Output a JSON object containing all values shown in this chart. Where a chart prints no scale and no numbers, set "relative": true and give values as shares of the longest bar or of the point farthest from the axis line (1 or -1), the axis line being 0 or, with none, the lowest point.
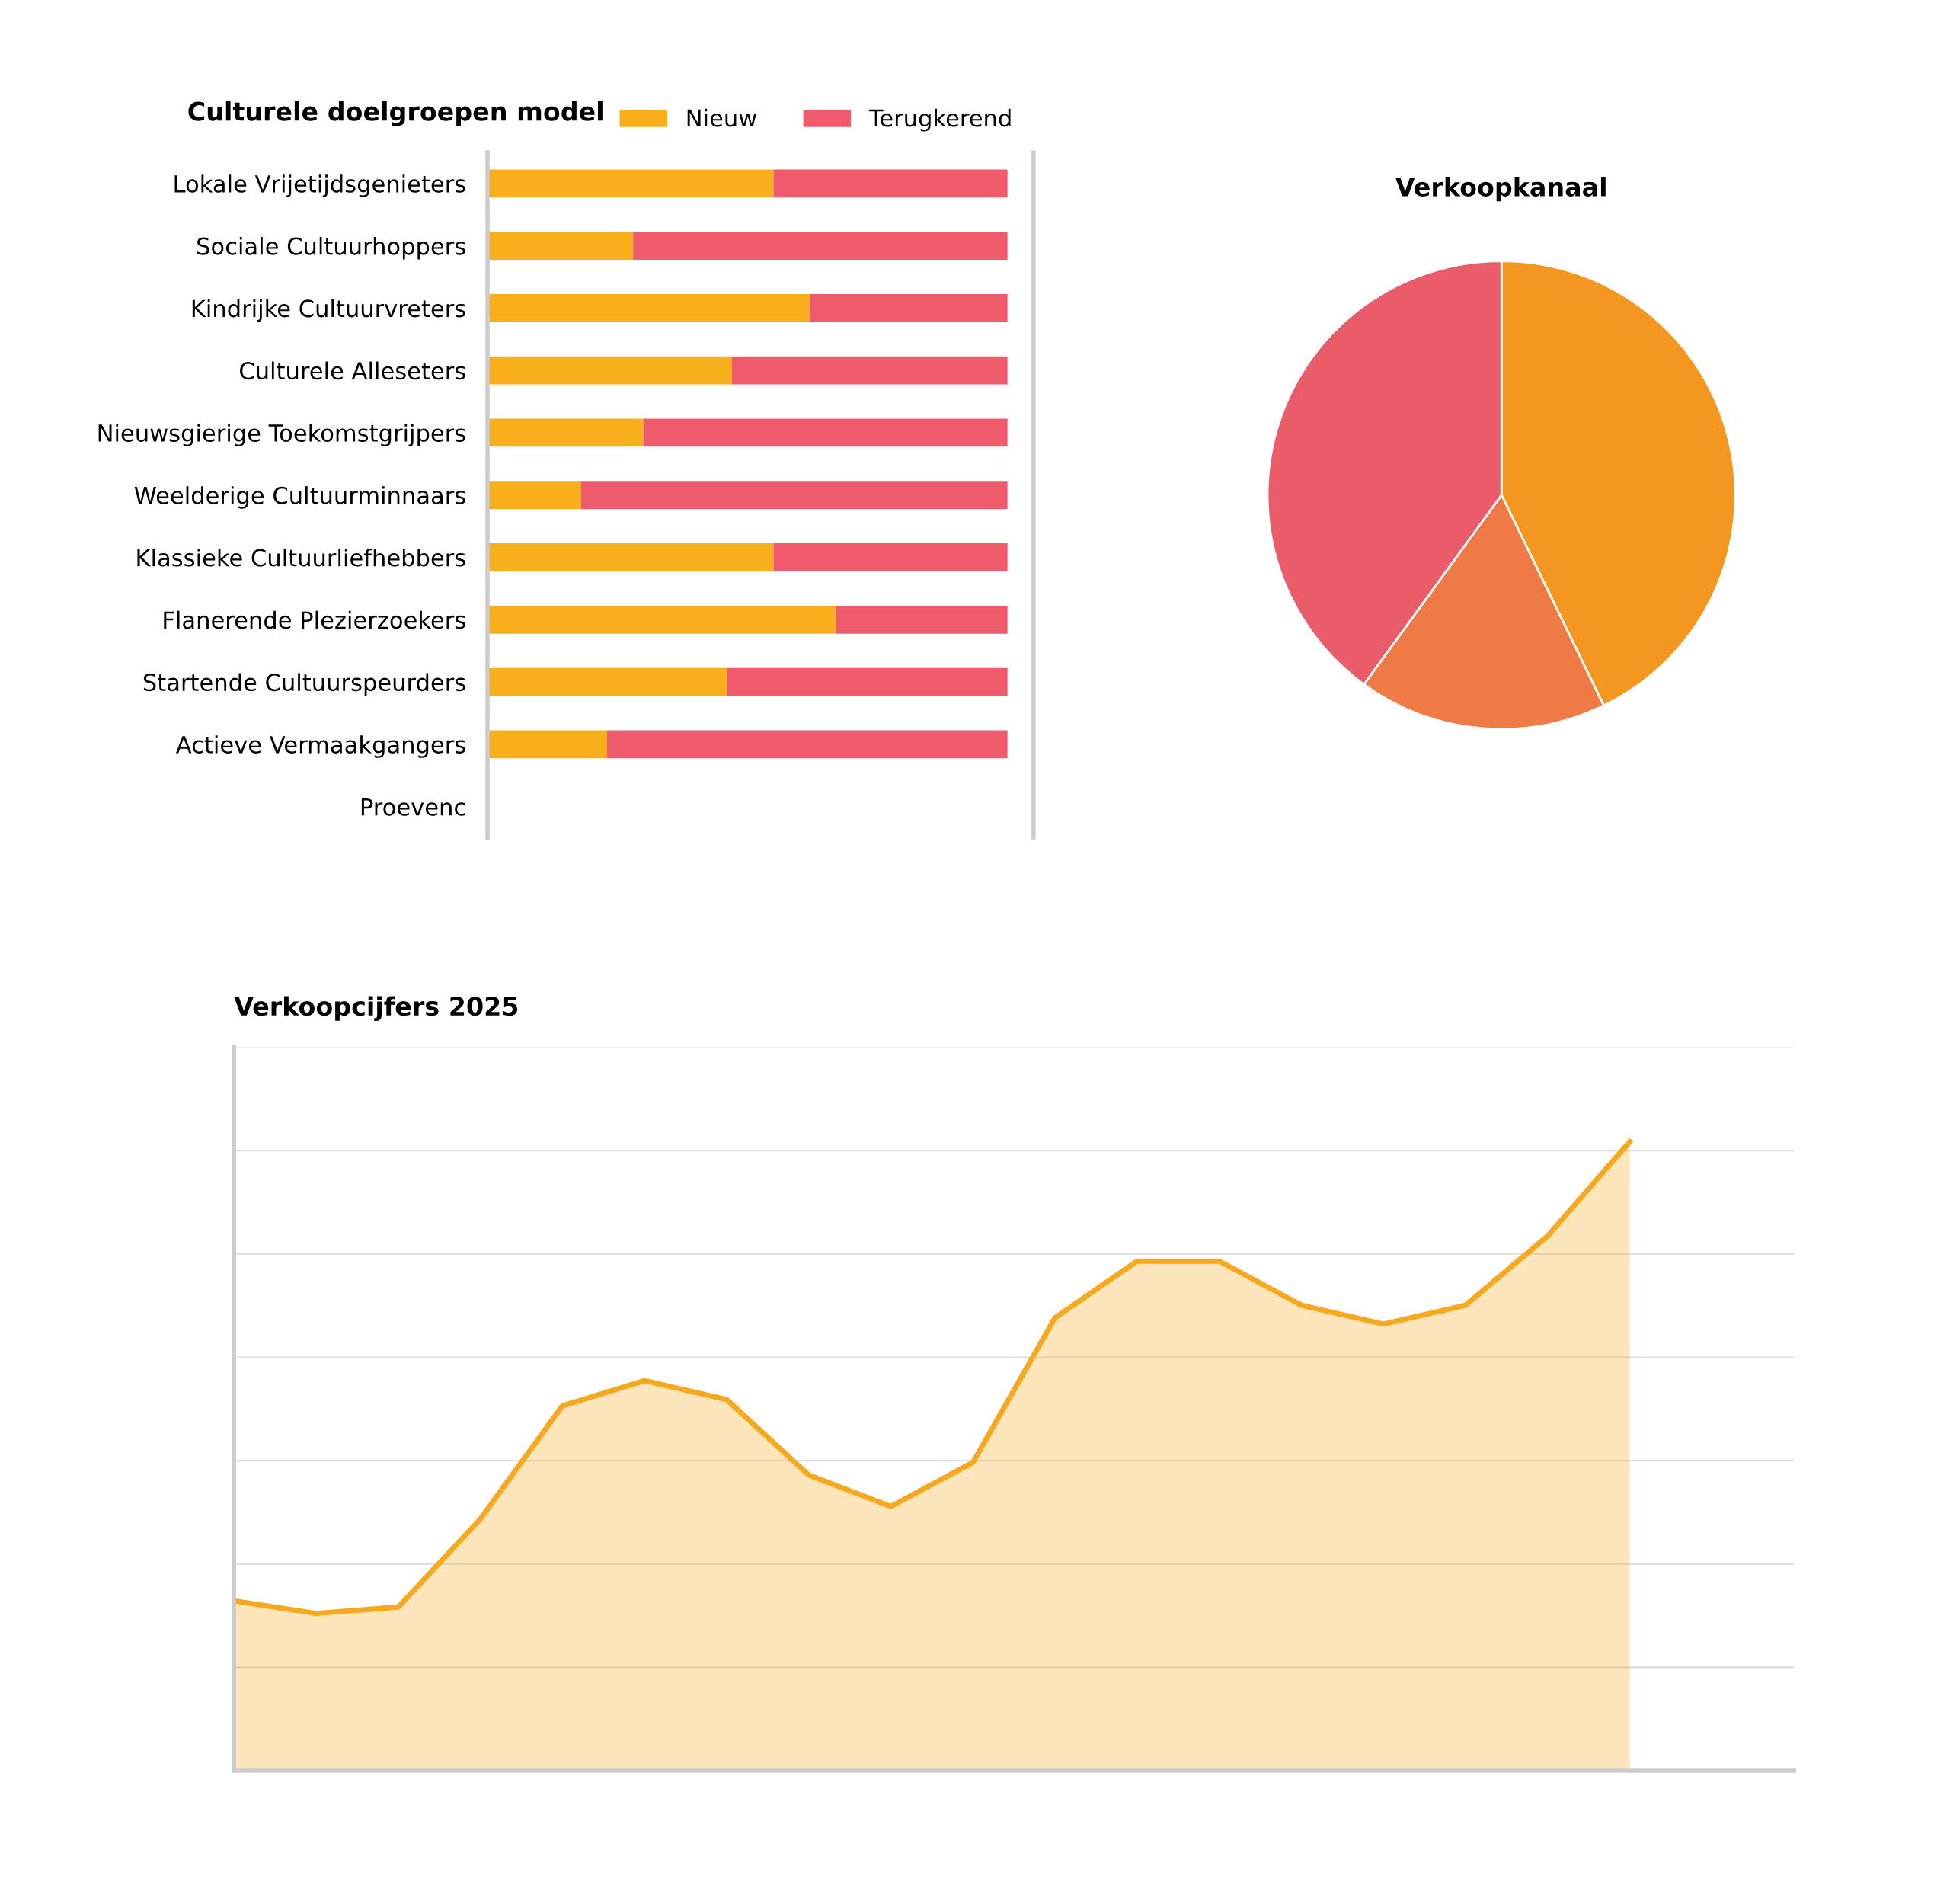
{
  "chart_data": [
    {
      "type": "bar",
      "title": "Culturele doelgroepen model",
      "orientation": "horizontal",
      "stacked": true,
      "relative": true,
      "legend": "top",
      "categories": [
        "Lokale Vrijetijdsgenieters",
        "Sociale Cultuurhoppers",
        "Kindrijke Cultuurvreters",
        "Culturele Alleseters",
        "Nieuwsgierige Toekomstgrijpers",
        "Weelderige Cultuurminnaars",
        "Klassieke Cultuurliefhebbers",
        "Flanerende Plezierzoekers",
        "Startende Cultuurspeurders",
        "Actieve Vermaakgangers",
        "Proevenc"
      ],
      "series": [
        {
          "name": "Nieuw",
          "color": "#f9ae1b",
          "values": [
            0.55,
            0.28,
            0.62,
            0.47,
            0.3,
            0.18,
            0.55,
            0.67,
            0.46,
            0.23,
            null
          ]
        },
        {
          "name": "Terugkerend",
          "color": "#ef5b6c",
          "values": [
            0.45,
            0.72,
            0.38,
            0.53,
            0.7,
            0.82,
            0.45,
            0.33,
            0.54,
            0.77,
            null
          ]
        }
      ]
    },
    {
      "type": "pie",
      "title": "Verkoopkanaal",
      "categories": [
        null,
        null,
        null
      ],
      "values": [
        42.8,
        17.2,
        40.0
      ],
      "colors": [
        "#f39720",
        "#f07a45",
        "#eb5c6b"
      ]
    },
    {
      "type": "area",
      "title": "Verkoopcijfers 2025",
      "relative": true,
      "grid": "y",
      "marker": "none",
      "categories": [
        null,
        null,
        null,
        null,
        null,
        null,
        null,
        null,
        null,
        null,
        null,
        null,
        null,
        null,
        null,
        null,
        null,
        null
      ],
      "series": [
        {
          "color": "#f6a91e",
          "values": [
            0.27,
            0.25,
            0.26,
            0.4,
            0.58,
            0.62,
            0.59,
            0.47,
            0.42,
            0.49,
            0.72,
            0.81,
            0.81,
            0.74,
            0.71,
            0.74,
            0.85,
            1
          ]
        }
      ]
    }
  ]
}
